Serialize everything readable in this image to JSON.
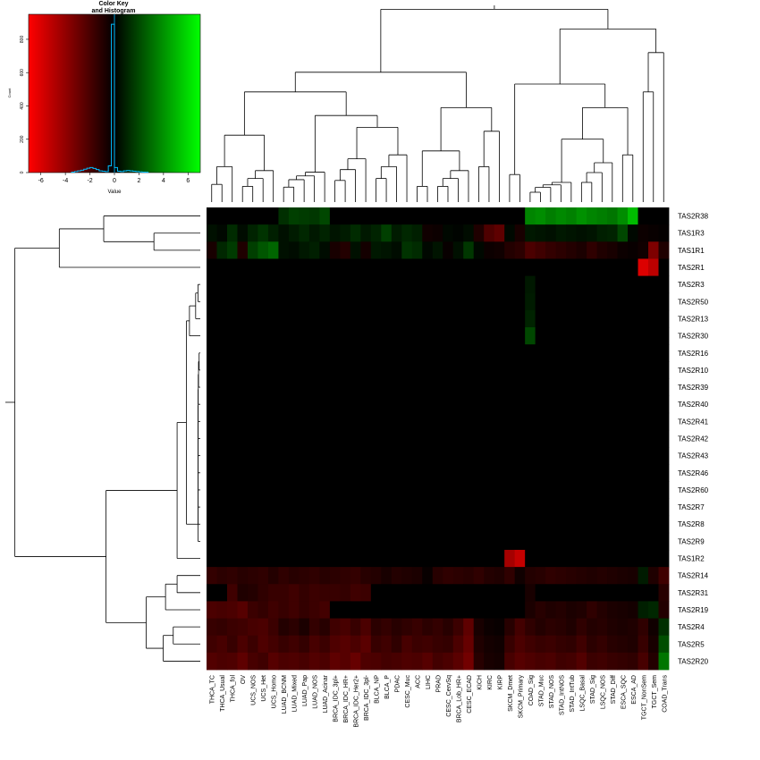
{
  "colors": {
    "low": "#ff0000",
    "mid": "#000000",
    "high": "#00ff00",
    "histogram": "#00bfff",
    "dendrogram": "#000000"
  },
  "color_key": {
    "title_line1": "Color Key",
    "title_line2": "and Histogram",
    "xlabel": "Value",
    "ylabel": "Count",
    "xticks": [
      "-6",
      "-4",
      "-2",
      "0",
      "2",
      "4",
      "6"
    ],
    "yticks": [
      "0",
      "200",
      "400",
      "600",
      "800"
    ],
    "xlim": [
      -7,
      7
    ],
    "ylim": [
      0,
      950
    ],
    "histogram": {
      "bins": [
        -3.5,
        -3.25,
        -3,
        -2.75,
        -2.5,
        -2.25,
        -2,
        -1.75,
        -1.5,
        -1.25,
        -1,
        -0.75,
        -0.5,
        -0.25,
        0,
        0.25,
        0.5,
        0.75,
        1,
        1.25,
        1.5,
        1.75,
        2,
        2.25,
        2.5
      ],
      "counts": [
        3,
        6,
        10,
        14,
        20,
        26,
        30,
        25,
        18,
        10,
        8,
        6,
        40,
        890,
        30,
        8,
        6,
        10,
        12,
        10,
        8,
        6,
        4,
        3,
        2
      ]
    }
  },
  "chart_data": {
    "type": "heatmap",
    "columns": [
      "THCA_TC",
      "THCA_Usual",
      "THCA_fol",
      "OV",
      "UCS_NOS",
      "UCS_Het",
      "UCS_Homo",
      "LUAD_BCNM",
      "LUAD_Mixed",
      "LUAD_Pap",
      "LUAD_NOS",
      "LUAD_Acinar",
      "BRCA_IDC_3pl+",
      "BRCA_IDC_HR+",
      "BRCA_IDC_Her2+",
      "BRCA_IDC_3pl-",
      "BLCA_NP",
      "BLCA_P",
      "PDAC",
      "CESC_Muc",
      "ACC",
      "LIHC",
      "PRAD",
      "CESC_CervSq",
      "BRCA_Lob_HR+",
      "CESC_ECAD",
      "KICH",
      "KIRC",
      "KIRP",
      "SKCM_Dmet",
      "SKCM_Primary",
      "COAD_Sig",
      "STAD_Muc",
      "STAD_NOS",
      "STAD_IntNOS",
      "STAD_IntTub",
      "LSQC_Basal",
      "STAD_Sig",
      "LSQC_NOS",
      "STAD_Diff",
      "ESCA_SQC",
      "ESCA_AD",
      "TGCT_NonSem",
      "TGCT_Sem",
      "COAD_Trans"
    ],
    "rows": [
      "TAS2R38",
      "TAS1R3",
      "TAS1R1",
      "TAS2R1",
      "TAS2R3",
      "TAS2R50",
      "TAS2R13",
      "TAS2R30",
      "TAS2R16",
      "TAS2R10",
      "TAS2R39",
      "TAS2R40",
      "TAS2R41",
      "TAS2R42",
      "TAS2R43",
      "TAS2R46",
      "TAS2R60",
      "TAS2R7",
      "TAS2R8",
      "TAS2R9",
      "TAS1R2",
      "TAS2R14",
      "TAS2R31",
      "TAS2R19",
      "TAS2R4",
      "TAS2R5",
      "TAS2R20"
    ],
    "value_range": [
      -6.5,
      6.5
    ],
    "color_scale": [
      "red",
      "black",
      "green"
    ],
    "values": [
      [
        0,
        0,
        0,
        0,
        0,
        0,
        0,
        1.2,
        1.6,
        1.5,
        1.4,
        1.8,
        0,
        0,
        0,
        0,
        0,
        0,
        0,
        0,
        0,
        0,
        0,
        0,
        0,
        0,
        0,
        0,
        0,
        0,
        0,
        3.4,
        3.6,
        3.2,
        3.5,
        3.3,
        3.7,
        3.4,
        3.2,
        3.0,
        3.6,
        4.8,
        0,
        0,
        0
      ],
      [
        0.4,
        0.2,
        1.1,
        0.3,
        0.9,
        1.3,
        0.8,
        0.4,
        0.7,
        1.0,
        0.6,
        0.9,
        0.5,
        0.7,
        1.1,
        0.6,
        0.9,
        1.6,
        0.7,
        1.0,
        0.8,
        -0.4,
        -0.3,
        0.2,
        0.1,
        0.3,
        -0.8,
        -2.0,
        -2.4,
        0.2,
        -0.6,
        0.6,
        0.5,
        0.4,
        0.6,
        0.5,
        0.4,
        0.5,
        0.8,
        0.9,
        1.8,
        0.2,
        -0.3,
        -0.2,
        -0.1
      ],
      [
        -0.6,
        1.0,
        1.5,
        -0.8,
        1.6,
        2.2,
        2.6,
        0.4,
        0.3,
        0.6,
        0.8,
        0.3,
        -0.6,
        -0.9,
        0.4,
        -0.5,
        0.6,
        0.5,
        0.3,
        1.3,
        1.1,
        0.2,
        0.5,
        -0.2,
        0.4,
        1.4,
        0.2,
        -0.3,
        -0.4,
        -0.9,
        -1.1,
        -1.9,
        -1.6,
        -1.3,
        -1.1,
        -0.9,
        -0.7,
        -1.2,
        -0.8,
        -0.6,
        -0.3,
        -0.2,
        -0.4,
        -3.2,
        -0.8
      ],
      [
        0,
        0,
        0,
        0,
        0,
        0,
        0,
        0,
        0,
        0,
        0,
        0,
        0,
        0,
        0,
        0,
        0,
        0,
        0,
        0,
        0,
        0,
        0,
        0,
        0,
        0,
        0,
        0,
        0,
        0,
        0,
        0,
        0,
        0,
        0,
        0,
        0,
        0,
        0,
        0,
        0,
        0,
        -5.6,
        -4.8,
        0
      ],
      [
        0,
        0,
        0,
        0,
        0,
        0,
        0,
        0,
        0,
        0,
        0,
        0,
        0,
        0,
        0,
        0,
        0,
        0,
        0,
        0,
        0,
        0,
        0,
        0,
        0,
        0,
        0,
        0,
        0,
        0,
        0,
        0.6,
        0,
        0,
        0,
        0,
        0,
        0,
        0,
        0,
        0,
        0,
        0,
        0,
        0
      ],
      [
        0,
        0,
        0,
        0,
        0,
        0,
        0,
        0,
        0,
        0,
        0,
        0,
        0,
        0,
        0,
        0,
        0,
        0,
        0,
        0,
        0,
        0,
        0,
        0,
        0,
        0,
        0,
        0,
        0,
        0,
        0,
        0.7,
        0,
        0,
        0,
        0,
        0,
        0,
        0,
        0,
        0,
        0,
        0,
        0,
        0
      ],
      [
        0,
        0,
        0,
        0,
        0,
        0,
        0,
        0,
        0,
        0,
        0,
        0,
        0,
        0,
        0,
        0,
        0,
        0,
        0,
        0,
        0,
        0,
        0,
        0,
        0,
        0,
        0,
        0,
        0,
        0,
        0,
        0.9,
        0,
        0,
        0,
        0,
        0,
        0,
        0,
        0,
        0,
        0,
        0,
        0,
        0
      ],
      [
        0,
        0,
        0,
        0,
        0,
        0,
        0,
        0,
        0,
        0,
        0,
        0,
        0,
        0,
        0,
        0,
        0,
        0,
        0,
        0,
        0,
        0,
        0,
        0,
        0,
        0,
        0,
        0,
        0,
        0,
        0,
        1.8,
        0,
        0,
        0,
        0,
        0,
        0,
        0,
        0,
        0,
        0,
        0,
        0,
        0
      ],
      [
        0,
        0,
        0,
        0,
        0,
        0,
        0,
        0,
        0,
        0,
        0,
        0,
        0,
        0,
        0,
        0,
        0,
        0,
        0,
        0,
        0,
        0,
        0,
        0,
        0,
        0,
        0,
        0,
        0,
        0,
        0,
        0,
        0,
        0,
        0,
        0,
        0,
        0,
        0,
        0,
        0,
        0,
        0,
        0,
        0
      ],
      [
        0,
        0,
        0,
        0,
        0,
        0,
        0,
        0,
        0,
        0,
        0,
        0,
        0,
        0,
        0,
        0,
        0,
        0,
        0,
        0,
        0,
        0,
        0,
        0,
        0,
        0,
        0,
        0,
        0,
        0,
        0,
        0,
        0,
        0,
        0,
        0,
        0,
        0,
        0,
        0,
        0,
        0,
        0,
        0,
        0
      ],
      [
        0,
        0,
        0,
        0,
        0,
        0,
        0,
        0,
        0,
        0,
        0,
        0,
        0,
        0,
        0,
        0,
        0,
        0,
        0,
        0,
        0,
        0,
        0,
        0,
        0,
        0,
        0,
        0,
        0,
        0,
        0,
        0,
        0,
        0,
        0,
        0,
        0,
        0,
        0,
        0,
        0,
        0,
        0,
        0,
        0
      ],
      [
        0,
        0,
        0,
        0,
        0,
        0,
        0,
        0,
        0,
        0,
        0,
        0,
        0,
        0,
        0,
        0,
        0,
        0,
        0,
        0,
        0,
        0,
        0,
        0,
        0,
        0,
        0,
        0,
        0,
        0,
        0,
        0,
        0,
        0,
        0,
        0,
        0,
        0,
        0,
        0,
        0,
        0,
        0,
        0,
        0
      ],
      [
        0,
        0,
        0,
        0,
        0,
        0,
        0,
        0,
        0,
        0,
        0,
        0,
        0,
        0,
        0,
        0,
        0,
        0,
        0,
        0,
        0,
        0,
        0,
        0,
        0,
        0,
        0,
        0,
        0,
        0,
        0,
        0,
        0,
        0,
        0,
        0,
        0,
        0,
        0,
        0,
        0,
        0,
        0,
        0,
        0
      ],
      [
        0,
        0,
        0,
        0,
        0,
        0,
        0,
        0,
        0,
        0,
        0,
        0,
        0,
        0,
        0,
        0,
        0,
        0,
        0,
        0,
        0,
        0,
        0,
        0,
        0,
        0,
        0,
        0,
        0,
        0,
        0,
        0,
        0,
        0,
        0,
        0,
        0,
        0,
        0,
        0,
        0,
        0,
        0,
        0,
        0
      ],
      [
        0,
        0,
        0,
        0,
        0,
        0,
        0,
        0,
        0,
        0,
        0,
        0,
        0,
        0,
        0,
        0,
        0,
        0,
        0,
        0,
        0,
        0,
        0,
        0,
        0,
        0,
        0,
        0,
        0,
        0,
        0,
        0,
        0,
        0,
        0,
        0,
        0,
        0,
        0,
        0,
        0,
        0,
        0,
        0,
        0
      ],
      [
        0,
        0,
        0,
        0,
        0,
        0,
        0,
        0,
        0,
        0,
        0,
        0,
        0,
        0,
        0,
        0,
        0,
        0,
        0,
        0,
        0,
        0,
        0,
        0,
        0,
        0,
        0,
        0,
        0,
        0,
        0,
        0,
        0,
        0,
        0,
        0,
        0,
        0,
        0,
        0,
        0,
        0,
        0,
        0,
        0
      ],
      [
        0,
        0,
        0,
        0,
        0,
        0,
        0,
        0,
        0,
        0,
        0,
        0,
        0,
        0,
        0,
        0,
        0,
        0,
        0,
        0,
        0,
        0,
        0,
        0,
        0,
        0,
        0,
        0,
        0,
        0,
        0,
        0,
        0,
        0,
        0,
        0,
        0,
        0,
        0,
        0,
        0,
        0,
        0,
        0,
        0
      ],
      [
        0,
        0,
        0,
        0,
        0,
        0,
        0,
        0,
        0,
        0,
        0,
        0,
        0,
        0,
        0,
        0,
        0,
        0,
        0,
        0,
        0,
        0,
        0,
        0,
        0,
        0,
        0,
        0,
        0,
        0,
        0,
        0,
        0,
        0,
        0,
        0,
        0,
        0,
        0,
        0,
        0,
        0,
        0,
        0,
        0
      ],
      [
        0,
        0,
        0,
        0,
        0,
        0,
        0,
        0,
        0,
        0,
        0,
        0,
        0,
        0,
        0,
        0,
        0,
        0,
        0,
        0,
        0,
        0,
        0,
        0,
        0,
        0,
        0,
        0,
        0,
        0,
        0,
        0,
        0,
        0,
        0,
        0,
        0,
        0,
        0,
        0,
        0,
        0,
        0,
        0,
        0
      ],
      [
        0,
        0,
        0,
        0,
        0,
        0,
        0,
        0,
        0,
        0,
        0,
        0,
        0,
        0,
        0,
        0,
        0,
        0,
        0,
        0,
        0,
        0,
        0,
        0,
        0,
        0,
        0,
        0,
        0,
        0,
        0,
        0,
        0,
        0,
        0,
        0,
        0,
        0,
        0,
        0,
        0,
        0,
        0,
        0,
        0
      ],
      [
        0,
        0,
        0,
        0,
        0,
        0,
        0,
        0,
        0,
        0,
        0,
        0,
        0,
        0,
        0,
        0,
        0,
        0,
        0,
        0,
        0,
        0,
        0,
        0,
        0,
        0,
        0,
        0,
        0,
        -4.2,
        -5.0,
        0,
        0,
        0,
        0,
        0,
        0,
        0,
        0,
        0,
        0,
        0,
        0,
        0,
        0
      ],
      [
        -1.3,
        -1.1,
        -1.2,
        -1.0,
        -1.1,
        -1.2,
        -0.9,
        -1.2,
        -1.0,
        -1.1,
        -1.2,
        -1.0,
        -1.1,
        -1.2,
        -1.3,
        -1.0,
        -0.9,
        -0.6,
        -0.9,
        -0.8,
        -0.7,
        -0.2,
        -1.0,
        -1.2,
        -1.1,
        -1.0,
        -1.2,
        -0.9,
        -0.8,
        -1.2,
        -0.4,
        -0.9,
        -1.0,
        -1.2,
        -1.1,
        -1.0,
        -0.9,
        -0.8,
        -0.9,
        -0.8,
        -0.7,
        -0.6,
        0.7,
        -0.8,
        -1.6
      ],
      [
        0,
        0,
        -1.6,
        -0.8,
        -0.9,
        -1.2,
        -1.4,
        -1.4,
        -1.6,
        -1.3,
        -1.5,
        -1.4,
        -1.4,
        -1.3,
        -1.6,
        -1.5,
        0,
        0,
        0,
        0,
        0,
        0,
        0,
        0,
        0,
        0,
        0,
        0,
        0,
        0,
        0,
        -0.6,
        0,
        0,
        0,
        0,
        0,
        0,
        0,
        0,
        0,
        0,
        0,
        0,
        -1.0
      ],
      [
        -1.9,
        -1.8,
        -1.9,
        -2.2,
        -1.5,
        -1.3,
        -1.6,
        -1.4,
        -1.6,
        -1.3,
        -1.5,
        -1.7,
        0,
        0,
        0,
        0,
        0,
        0,
        0,
        0,
        0,
        0,
        0,
        0,
        0,
        0,
        0,
        0,
        0,
        0,
        0,
        -0.7,
        -1.0,
        -0.8,
        -0.9,
        -0.7,
        -0.8,
        -1.2,
        -0.9,
        -0.7,
        -0.6,
        -0.5,
        0.8,
        1.0,
        -0.9
      ],
      [
        -1.4,
        -1.3,
        -1.5,
        -1.6,
        -1.8,
        -1.9,
        -1.5,
        -0.9,
        -1.1,
        -0.7,
        -1.3,
        -1.0,
        -1.6,
        -1.8,
        -1.4,
        -1.9,
        -1.1,
        -1.3,
        -1.0,
        -1.2,
        -1.4,
        -1.1,
        -1.3,
        -1.0,
        -1.5,
        -2.4,
        -0.6,
        -0.3,
        -0.2,
        -1.0,
        -1.7,
        -1.2,
        -0.9,
        -1.1,
        -1.0,
        -0.8,
        -1.2,
        -0.9,
        -1.0,
        -0.8,
        -0.7,
        -0.8,
        -1.2,
        -0.4,
        1.2
      ],
      [
        -1.6,
        -1.8,
        -1.4,
        -1.9,
        -1.5,
        -2.0,
        -1.7,
        -1.4,
        -1.6,
        -1.3,
        -1.8,
        -1.5,
        -2.0,
        -2.2,
        -1.9,
        -2.3,
        -1.4,
        -1.6,
        -1.2,
        -1.8,
        -1.5,
        -1.6,
        -1.4,
        -1.3,
        -1.9,
        -2.6,
        -0.8,
        -0.5,
        -0.4,
        -1.4,
        -1.9,
        -1.6,
        -1.4,
        -1.5,
        -1.3,
        -1.2,
        -1.6,
        -1.1,
        -1.3,
        -1.0,
        -0.9,
        -0.8,
        -1.4,
        -0.6,
        2.0
      ],
      [
        -2.1,
        -1.9,
        -2.0,
        -2.4,
        -1.8,
        -1.6,
        -2.2,
        -1.9,
        -2.0,
        -1.8,
        -2.1,
        -1.9,
        -2.4,
        -2.2,
        -2.6,
        -2.0,
        -1.9,
        -1.7,
        -1.8,
        -2.0,
        -1.9,
        -2.2,
        -1.7,
        -1.9,
        -2.3,
        -2.9,
        -1.0,
        -0.6,
        -0.5,
        -1.8,
        -2.2,
        -2.0,
        -1.8,
        -1.9,
        -1.6,
        -1.7,
        -2.1,
        -1.5,
        -1.6,
        -1.4,
        -1.3,
        -1.2,
        -1.8,
        -0.9,
        3.0
      ]
    ]
  }
}
